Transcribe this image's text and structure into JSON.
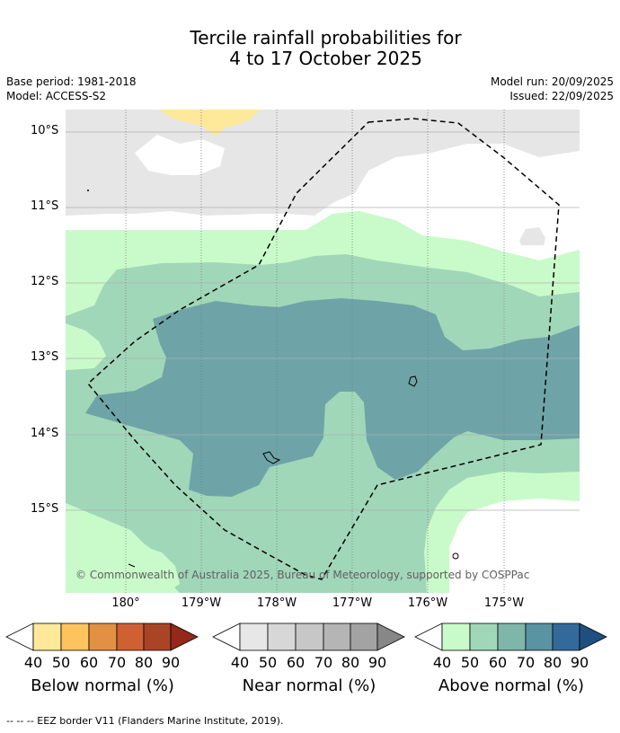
{
  "title": {
    "line1": "Tercile rainfall probabilities for",
    "line2": "4 to 17 October 2025"
  },
  "meta": {
    "base_period": "Base period: 1981-2018",
    "model": "Model: ACCESS-S2",
    "model_run": "Model run: 20/09/2025",
    "issued": "Issued: 22/09/2025"
  },
  "map": {
    "lat_labels": [
      "10°S",
      "11°S",
      "12°S",
      "13°S",
      "14°S",
      "15°S"
    ],
    "lon_labels": [
      "180°",
      "179°W",
      "178°W",
      "177°W",
      "176°W",
      "175°W"
    ],
    "copyright": "© Commonwealth of Australia 2025, Bureau of Meteorology, supported by COSPPac"
  },
  "colorbars": [
    {
      "title": "Below normal (%)",
      "ticks": [
        "40",
        "50",
        "60",
        "70",
        "80",
        "90"
      ],
      "colors": [
        "#ffffff",
        "#fee89a",
        "#fdc35f",
        "#e29044",
        "#cf6032",
        "#aa4427",
        "#94281b"
      ]
    },
    {
      "title": "Near normal (%)",
      "ticks": [
        "40",
        "50",
        "60",
        "70",
        "80",
        "90"
      ],
      "colors": [
        "#ffffff",
        "#e7e7e7",
        "#d7d7d7",
        "#c7c7c7",
        "#b5b5b5",
        "#a3a3a3",
        "#878787"
      ]
    },
    {
      "title": "Above normal (%)",
      "ticks": [
        "40",
        "50",
        "60",
        "70",
        "80",
        "90"
      ],
      "colors": [
        "#ffffff",
        "#c9fbca",
        "#a1d7b9",
        "#80b6aa",
        "#5a93a2",
        "#346a9b",
        "#1e4f80"
      ]
    }
  ],
  "footnote": "-- -- -- EEZ border V11 (Flanders Marine Institute, 2019)."
}
